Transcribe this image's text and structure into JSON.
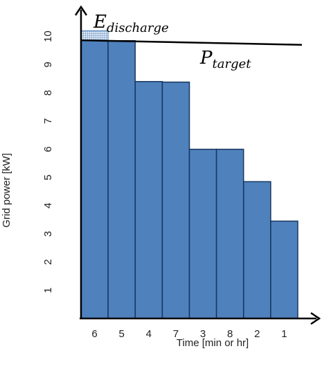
{
  "chart_data": {
    "type": "bar",
    "categories": [
      "6",
      "5",
      "4",
      "7",
      "3",
      "8",
      "2",
      "1"
    ],
    "values": [
      9.85,
      9.85,
      8.4,
      8.38,
      6.0,
      6.0,
      4.85,
      3.45
    ],
    "xlabel": "Time [min or hr]",
    "ylabel": "Grid power [kW]",
    "ylim": [
      0,
      10.8
    ],
    "yticks": [
      1,
      2,
      3,
      4,
      5,
      6,
      7,
      8,
      9,
      10
    ],
    "grid": false,
    "bar_color": "#4f81bd",
    "bar_edge_color": "#17375e",
    "target_line": {
      "value": 9.8,
      "label_main": "P",
      "label_sub": "target"
    },
    "discharge": {
      "value_low": 9.85,
      "value_high": 10.2,
      "label_main": "E",
      "label_sub": "discharge"
    }
  }
}
